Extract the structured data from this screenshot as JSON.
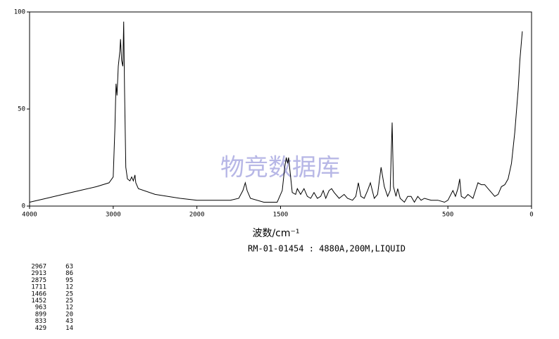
{
  "chart_data": {
    "type": "line",
    "x_label": "波数/cm⁻¹",
    "subtitle": "RM-01-01454 : 4880A,200M,LIQUID",
    "watermark": "物竞数据库",
    "xlim": [
      4000,
      0
    ],
    "xticks": [
      4000,
      3000,
      2000,
      1500,
      500,
      0
    ],
    "xscale": {
      "break": 2000,
      "factor": 2
    },
    "ylim": [
      0,
      100
    ],
    "yticks": [
      0,
      50,
      100
    ],
    "color": "#000000",
    "x": [
      4000,
      3800,
      3600,
      3400,
      3200,
      3050,
      3000,
      2980,
      2967,
      2955,
      2940,
      2920,
      2913,
      2900,
      2885,
      2875,
      2865,
      2850,
      2830,
      2800,
      2780,
      2760,
      2740,
      2730,
      2700,
      2500,
      2200,
      2000,
      1800,
      1750,
      1725,
      1711,
      1700,
      1680,
      1600,
      1520,
      1490,
      1475,
      1466,
      1458,
      1452,
      1440,
      1430,
      1410,
      1400,
      1380,
      1360,
      1340,
      1320,
      1300,
      1280,
      1260,
      1245,
      1230,
      1210,
      1195,
      1180,
      1150,
      1120,
      1100,
      1070,
      1050,
      1035,
      1020,
      1000,
      980,
      963,
      940,
      920,
      899,
      880,
      860,
      845,
      833,
      825,
      810,
      800,
      785,
      760,
      740,
      720,
      700,
      680,
      660,
      640,
      600,
      560,
      520,
      500,
      470,
      455,
      440,
      429,
      420,
      400,
      380,
      350,
      320,
      300,
      280,
      260,
      240,
      220,
      200,
      180,
      160,
      140,
      120,
      100,
      80,
      70,
      60,
      55
    ],
    "values": [
      2,
      4,
      6,
      8,
      10,
      12,
      15,
      40,
      63,
      57,
      72,
      80,
      86,
      75,
      72,
      95,
      60,
      20,
      14,
      13,
      15,
      13,
      16,
      12,
      9,
      6,
      4,
      3,
      3,
      4,
      8,
      12,
      8,
      4,
      2,
      2,
      8,
      20,
      25,
      22,
      25,
      15,
      7,
      6,
      9,
      6,
      9,
      5,
      4,
      7,
      4,
      5,
      8,
      4,
      8,
      9,
      7,
      4,
      6,
      4,
      3,
      5,
      12,
      5,
      4,
      8,
      12,
      4,
      6,
      20,
      10,
      5,
      8,
      43,
      10,
      5,
      9,
      4,
      2,
      5,
      5,
      2,
      5,
      3,
      4,
      3,
      3,
      2,
      3,
      8,
      5,
      9,
      14,
      5,
      4,
      6,
      4,
      12,
      11,
      11,
      9,
      7,
      5,
      6,
      10,
      11,
      14,
      22,
      38,
      60,
      75,
      85,
      90
    ],
    "peak_table": [
      [
        2967,
        63
      ],
      [
        2913,
        86
      ],
      [
        2875,
        95
      ],
      [
        1711,
        12
      ],
      [
        1466,
        25
      ],
      [
        1452,
        25
      ],
      [
        963,
        12
      ],
      [
        899,
        20
      ],
      [
        833,
        43
      ],
      [
        429,
        14
      ]
    ]
  }
}
